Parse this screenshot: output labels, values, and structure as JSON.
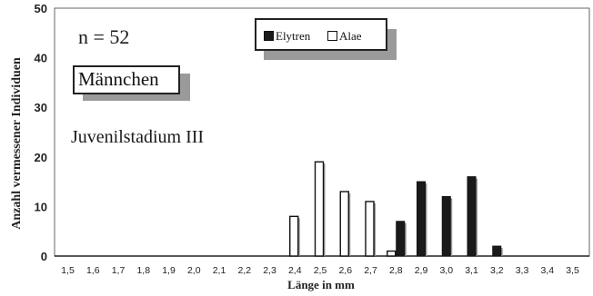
{
  "chart_data": {
    "type": "bar",
    "ylabel": "Anzahl vermessener Individuen",
    "xlabel": "Länge in mm",
    "ylim": [
      0,
      50
    ],
    "yticks": [
      "0",
      "10",
      "20",
      "30",
      "40",
      "50"
    ],
    "grid": true,
    "categories": [
      "1,5",
      "1,6",
      "1,7",
      "1,8",
      "1,9",
      "2,0",
      "2,1",
      "2,2",
      "2,3",
      "2,4",
      "2,5",
      "2,6",
      "2,7",
      "2,8",
      "2,9",
      "3,0",
      "3,1",
      "3,2",
      "3,3",
      "3,4",
      "3,5"
    ],
    "series": [
      {
        "name": "Elytren",
        "color": "#1a1a1a",
        "values": [
          0,
          0,
          0,
          0,
          0,
          0,
          0,
          0,
          0,
          0,
          0,
          0,
          0,
          7,
          15,
          12,
          16,
          2,
          0,
          0,
          0
        ]
      },
      {
        "name": "Alae",
        "color": "#ffffff",
        "values": [
          0,
          0,
          0,
          0,
          0,
          0,
          0,
          0,
          0,
          8,
          19,
          13,
          11,
          1,
          0,
          0,
          0,
          0,
          0,
          0,
          0
        ]
      }
    ],
    "annotations": {
      "n": "n = 52",
      "sex": "Männchen",
      "stage": "Juvenilstadium III"
    },
    "legend_position": "top-center"
  }
}
